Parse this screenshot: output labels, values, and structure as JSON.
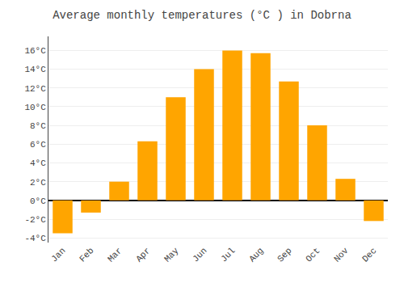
{
  "chart_data": {
    "type": "bar",
    "title": "Average monthly temperatures (°C ) in Dobrna",
    "categories": [
      "Jan",
      "Feb",
      "Mar",
      "Apr",
      "May",
      "Jun",
      "Jul",
      "Aug",
      "Sep",
      "Oct",
      "Nov",
      "Dec"
    ],
    "values": [
      -3.5,
      -1.3,
      2.0,
      6.3,
      11.0,
      14.0,
      16.0,
      15.7,
      12.7,
      8.0,
      2.3,
      -2.2
    ],
    "color": "#FFA500",
    "ylim": [
      -4.5,
      17.5
    ],
    "yticks": [
      {
        "value": -4,
        "label": "-4°C"
      },
      {
        "value": -2,
        "label": "-2°C"
      },
      {
        "value": 0,
        "label": "0°C"
      },
      {
        "value": 2,
        "label": "2°C"
      },
      {
        "value": 4,
        "label": "4°C"
      },
      {
        "value": 6,
        "label": "6°C"
      },
      {
        "value": 8,
        "label": "8°C"
      },
      {
        "value": 10,
        "label": "10°C"
      },
      {
        "value": 12,
        "label": "12°C"
      },
      {
        "value": 14,
        "label": "14°C"
      },
      {
        "value": 16,
        "label": "16°C"
      }
    ],
    "grid": true
  }
}
